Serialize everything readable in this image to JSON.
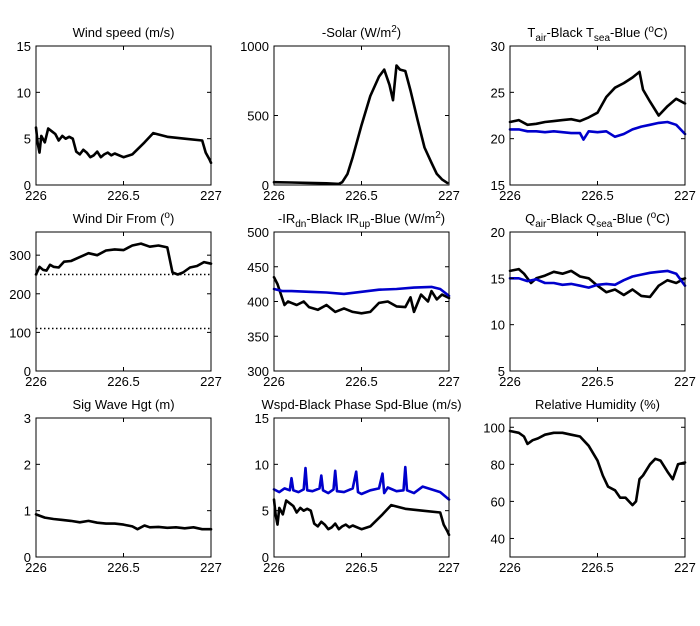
{
  "chart_data": [
    {
      "id": "wind_speed",
      "type": "line",
      "title_parts": [
        {
          "t": "Wind speed (m/s)"
        }
      ],
      "xlim": [
        226,
        227
      ],
      "ylim": [
        0,
        15
      ],
      "xticks": [
        "226",
        "226.5",
        "227"
      ],
      "yticks": [
        "0",
        "5",
        "10",
        "15"
      ],
      "series": [
        {
          "color": "#000000",
          "x": [
            226.0,
            226.01,
            226.02,
            226.03,
            226.05,
            226.07,
            226.09,
            226.11,
            226.13,
            226.15,
            226.17,
            226.19,
            226.21,
            226.23,
            226.25,
            226.27,
            226.29,
            226.31,
            226.33,
            226.35,
            226.37,
            226.39,
            226.41,
            226.43,
            226.45,
            226.5,
            226.55,
            226.62,
            226.67,
            226.75,
            226.85,
            226.95,
            226.97,
            226.99,
            227.0
          ],
          "y": [
            6.2,
            4.5,
            3.5,
            5.3,
            4.6,
            6.1,
            5.8,
            5.5,
            4.8,
            5.3,
            5.0,
            5.2,
            5.0,
            3.6,
            3.3,
            3.8,
            3.5,
            3.0,
            3.2,
            3.6,
            3.0,
            3.3,
            3.5,
            3.2,
            3.4,
            3.0,
            3.3,
            4.6,
            5.6,
            5.2,
            5.0,
            4.8,
            3.5,
            2.8,
            2.4
          ]
        }
      ]
    },
    {
      "id": "solar",
      "type": "line",
      "title_parts": [
        {
          "t": "-Solar (W/m"
        },
        {
          "t": "2",
          "sup": true
        },
        {
          "t": ")"
        }
      ],
      "xlim": [
        226,
        227
      ],
      "ylim": [
        0,
        1000
      ],
      "xticks": [
        "226",
        "226.5",
        "227"
      ],
      "yticks": [
        "0",
        "500",
        "1000"
      ],
      "series": [
        {
          "color": "#000000",
          "x": [
            226.0,
            226.1,
            226.2,
            226.3,
            226.37,
            226.39,
            226.42,
            226.45,
            226.5,
            226.55,
            226.6,
            226.63,
            226.66,
            226.68,
            226.7,
            226.72,
            226.75,
            226.78,
            226.82,
            226.86,
            226.9,
            226.93,
            226.96,
            226.99
          ],
          "y": [
            20,
            18,
            15,
            12,
            8,
            20,
            80,
            200,
            430,
            640,
            780,
            830,
            720,
            610,
            860,
            830,
            820,
            680,
            470,
            270,
            160,
            80,
            40,
            15
          ]
        }
      ]
    },
    {
      "id": "temperature",
      "type": "line",
      "title_parts": [
        {
          "t": "T"
        },
        {
          "t": "air",
          "sub": true
        },
        {
          "t": "-Black  T"
        },
        {
          "t": "sea",
          "sub": true
        },
        {
          "t": "-Blue ("
        },
        {
          "t": "o",
          "sup": true
        },
        {
          "t": "C)"
        }
      ],
      "xlim": [
        226,
        227
      ],
      "ylim": [
        15,
        30
      ],
      "xticks": [
        "226",
        "226.5",
        "227"
      ],
      "yticks": [
        "15",
        "20",
        "25",
        "30"
      ],
      "series": [
        {
          "color": "#000000",
          "x": [
            226.0,
            226.05,
            226.1,
            226.15,
            226.2,
            226.25,
            226.3,
            226.35,
            226.4,
            226.45,
            226.5,
            226.55,
            226.6,
            226.65,
            226.7,
            226.74,
            226.76,
            226.8,
            226.85,
            226.9,
            226.95,
            227.0
          ],
          "y": [
            21.8,
            22.0,
            21.5,
            21.6,
            21.8,
            21.9,
            22.0,
            22.1,
            21.9,
            22.3,
            22.8,
            24.5,
            25.5,
            26.0,
            26.6,
            27.2,
            25.3,
            24.0,
            22.5,
            23.5,
            24.3,
            23.8
          ]
        },
        {
          "color": "#0000CC",
          "x": [
            226.0,
            226.05,
            226.1,
            226.15,
            226.2,
            226.25,
            226.3,
            226.35,
            226.4,
            226.42,
            226.45,
            226.5,
            226.55,
            226.6,
            226.65,
            226.7,
            226.75,
            226.8,
            226.85,
            226.9,
            226.95,
            227.0
          ],
          "y": [
            21.0,
            21.0,
            20.8,
            20.8,
            20.7,
            20.8,
            20.7,
            20.6,
            20.6,
            19.9,
            20.8,
            20.7,
            20.8,
            20.2,
            20.5,
            21.0,
            21.3,
            21.5,
            21.7,
            21.8,
            21.5,
            20.5
          ]
        }
      ]
    },
    {
      "id": "wind_dir",
      "type": "line",
      "title_parts": [
        {
          "t": "Wind Dir From ("
        },
        {
          "t": "o",
          "sup": true
        },
        {
          "t": ")"
        }
      ],
      "xlim": [
        226,
        227
      ],
      "ylim": [
        0,
        360
      ],
      "xticks": [
        "226",
        "226.5",
        "227"
      ],
      "yticks": [
        "0",
        "100",
        "200",
        "300"
      ],
      "reflines": [
        250,
        110
      ],
      "series": [
        {
          "color": "#000000",
          "x": [
            226.0,
            226.02,
            226.04,
            226.06,
            226.08,
            226.1,
            226.13,
            226.16,
            226.2,
            226.25,
            226.3,
            226.35,
            226.4,
            226.45,
            226.5,
            226.55,
            226.6,
            226.65,
            226.7,
            226.75,
            226.78,
            226.81,
            226.84,
            226.88,
            226.92,
            226.96,
            227.0
          ],
          "y": [
            250,
            270,
            262,
            260,
            275,
            270,
            268,
            283,
            285,
            295,
            305,
            300,
            312,
            315,
            313,
            325,
            330,
            322,
            325,
            320,
            255,
            250,
            255,
            268,
            272,
            282,
            278
          ]
        }
      ]
    },
    {
      "id": "ir",
      "type": "line",
      "title_parts": [
        {
          "t": "-IR"
        },
        {
          "t": "dn",
          "sub": true
        },
        {
          "t": "-Black  IR"
        },
        {
          "t": "up",
          "sub": true
        },
        {
          "t": "-Blue (W/m"
        },
        {
          "t": "2",
          "sup": true
        },
        {
          "t": ")"
        }
      ],
      "xlim": [
        226,
        227
      ],
      "ylim": [
        300,
        500
      ],
      "xticks": [
        "226",
        "226.5",
        "227"
      ],
      "yticks": [
        "300",
        "350",
        "400",
        "450",
        "500"
      ],
      "series": [
        {
          "color": "#000000",
          "x": [
            226.0,
            226.02,
            226.04,
            226.06,
            226.08,
            226.1,
            226.13,
            226.17,
            226.2,
            226.25,
            226.3,
            226.35,
            226.4,
            226.45,
            226.5,
            226.55,
            226.6,
            226.65,
            226.7,
            226.75,
            226.78,
            226.8,
            226.84,
            226.88,
            226.9,
            226.93,
            226.96,
            227.0
          ],
          "y": [
            435,
            425,
            410,
            395,
            400,
            398,
            395,
            400,
            392,
            388,
            395,
            385,
            390,
            385,
            383,
            385,
            398,
            400,
            393,
            392,
            406,
            385,
            410,
            400,
            415,
            403,
            410,
            405
          ]
        },
        {
          "color": "#0000CC",
          "x": [
            226.0,
            226.05,
            226.1,
            226.2,
            226.3,
            226.4,
            226.5,
            226.6,
            226.7,
            226.8,
            226.9,
            226.95,
            227.0
          ],
          "y": [
            418,
            415,
            415,
            414,
            413,
            411,
            414,
            417,
            418,
            420,
            421,
            418,
            408
          ]
        }
      ]
    },
    {
      "id": "humidity_q",
      "type": "line",
      "title_parts": [
        {
          "t": "Q"
        },
        {
          "t": "air",
          "sub": true
        },
        {
          "t": "-Black  Q"
        },
        {
          "t": "sea",
          "sub": true
        },
        {
          "t": "-Blue ("
        },
        {
          "t": "o",
          "sup": true
        },
        {
          "t": "C)"
        }
      ],
      "xlim": [
        226,
        227
      ],
      "ylim": [
        5,
        20
      ],
      "xticks": [
        "226",
        "226.5",
        "227"
      ],
      "yticks": [
        "5",
        "10",
        "15",
        "20"
      ],
      "series": [
        {
          "color": "#000000",
          "x": [
            226.0,
            226.05,
            226.08,
            226.12,
            226.15,
            226.2,
            226.25,
            226.3,
            226.35,
            226.4,
            226.45,
            226.5,
            226.55,
            226.6,
            226.65,
            226.7,
            226.75,
            226.8,
            226.85,
            226.9,
            226.95,
            227.0
          ],
          "y": [
            15.8,
            16.0,
            15.5,
            14.5,
            15.0,
            15.3,
            15.7,
            15.5,
            15.8,
            15.2,
            15.0,
            14.2,
            13.5,
            13.8,
            13.2,
            13.8,
            13.1,
            13.0,
            14.2,
            14.8,
            14.5,
            15.0
          ]
        },
        {
          "color": "#0000CC",
          "x": [
            226.0,
            226.05,
            226.1,
            226.15,
            226.2,
            226.25,
            226.3,
            226.35,
            226.4,
            226.45,
            226.5,
            226.55,
            226.6,
            226.65,
            226.7,
            226.75,
            226.8,
            226.85,
            226.9,
            226.95,
            227.0
          ],
          "y": [
            15.0,
            15.0,
            14.7,
            14.9,
            14.5,
            14.5,
            14.3,
            14.4,
            14.2,
            14.0,
            14.3,
            14.4,
            14.3,
            14.8,
            15.2,
            15.4,
            15.6,
            15.7,
            15.8,
            15.5,
            14.2
          ]
        }
      ]
    },
    {
      "id": "wave_height",
      "type": "line",
      "title_parts": [
        {
          "t": "Sig Wave Hgt (m)"
        }
      ],
      "xlim": [
        226,
        227
      ],
      "ylim": [
        0,
        3
      ],
      "xticks": [
        "226",
        "226.5",
        "227"
      ],
      "yticks": [
        "0",
        "1",
        "2",
        "3"
      ],
      "series": [
        {
          "color": "#000000",
          "x": [
            226.0,
            226.05,
            226.1,
            226.15,
            226.2,
            226.25,
            226.3,
            226.35,
            226.4,
            226.45,
            226.5,
            226.55,
            226.58,
            226.62,
            226.65,
            226.7,
            226.75,
            226.8,
            226.85,
            226.9,
            226.95,
            227.0
          ],
          "y": [
            0.92,
            0.85,
            0.82,
            0.8,
            0.78,
            0.75,
            0.78,
            0.74,
            0.72,
            0.72,
            0.7,
            0.66,
            0.6,
            0.68,
            0.64,
            0.65,
            0.63,
            0.64,
            0.62,
            0.64,
            0.6,
            0.6
          ]
        }
      ]
    },
    {
      "id": "wspd_phase",
      "type": "line",
      "title_parts": [
        {
          "t": "Wspd-Black  Phase Spd-Blue (m/s)"
        }
      ],
      "xlim": [
        226,
        227
      ],
      "ylim": [
        0,
        15
      ],
      "xticks": [
        "226",
        "226.5",
        "227"
      ],
      "yticks": [
        "0",
        "5",
        "10",
        "15"
      ],
      "series": [
        {
          "color": "#000000",
          "x": [
            226.0,
            226.01,
            226.02,
            226.03,
            226.05,
            226.07,
            226.09,
            226.11,
            226.13,
            226.15,
            226.17,
            226.19,
            226.21,
            226.23,
            226.25,
            226.27,
            226.29,
            226.31,
            226.33,
            226.35,
            226.37,
            226.39,
            226.41,
            226.43,
            226.45,
            226.5,
            226.55,
            226.62,
            226.67,
            226.75,
            226.85,
            226.95,
            226.97,
            226.99,
            227.0
          ],
          "y": [
            6.2,
            4.5,
            3.5,
            5.3,
            4.6,
            6.1,
            5.8,
            5.5,
            4.8,
            5.3,
            5.0,
            5.2,
            5.0,
            3.6,
            3.3,
            3.8,
            3.5,
            3.0,
            3.2,
            3.6,
            3.0,
            3.3,
            3.5,
            3.2,
            3.4,
            3.0,
            3.3,
            4.6,
            5.6,
            5.2,
            5.0,
            4.8,
            3.5,
            2.8,
            2.4
          ]
        },
        {
          "color": "#0000CC",
          "x": [
            226.0,
            226.03,
            226.06,
            226.09,
            226.1,
            226.11,
            226.14,
            226.17,
            226.18,
            226.19,
            226.22,
            226.26,
            226.27,
            226.28,
            226.31,
            226.34,
            226.35,
            226.36,
            226.4,
            226.45,
            226.47,
            226.48,
            226.5,
            226.55,
            226.6,
            226.62,
            226.63,
            226.65,
            226.7,
            226.74,
            226.75,
            226.76,
            226.8,
            226.85,
            226.9,
            226.95,
            227.0
          ],
          "y": [
            7.3,
            7.0,
            7.4,
            7.2,
            8.5,
            7.2,
            7.0,
            7.3,
            9.6,
            7.2,
            7.1,
            7.4,
            8.8,
            7.2,
            6.9,
            7.3,
            9.3,
            7.1,
            7.0,
            7.4,
            9.2,
            7.0,
            6.8,
            7.2,
            7.4,
            9.0,
            6.9,
            7.5,
            7.1,
            7.2,
            9.7,
            7.2,
            6.9,
            7.6,
            7.3,
            7.0,
            6.2
          ]
        }
      ]
    },
    {
      "id": "relative_humidity",
      "type": "line",
      "title_parts": [
        {
          "t": "Relative Humidity (%)"
        }
      ],
      "xlim": [
        226,
        227
      ],
      "ylim": [
        30,
        105
      ],
      "xticks": [
        "226",
        "226.5",
        "227"
      ],
      "yticks": [
        "40",
        "60",
        "80",
        "100"
      ],
      "ytick_values": [
        40,
        60,
        80,
        100
      ],
      "series": [
        {
          "color": "#000000",
          "x": [
            226.0,
            226.05,
            226.08,
            226.1,
            226.13,
            226.16,
            226.2,
            226.25,
            226.3,
            226.35,
            226.4,
            226.45,
            226.5,
            226.53,
            226.56,
            226.6,
            226.63,
            226.66,
            226.7,
            226.72,
            226.74,
            226.76,
            226.8,
            226.83,
            226.86,
            226.9,
            226.93,
            226.96,
            227.0
          ],
          "y": [
            98,
            97,
            95,
            91,
            93,
            94,
            96,
            97,
            97,
            96,
            95,
            90,
            82,
            74,
            68,
            66,
            62,
            62,
            58,
            60,
            72,
            74,
            80,
            83,
            82,
            76,
            72,
            80,
            81
          ]
        }
      ]
    }
  ]
}
